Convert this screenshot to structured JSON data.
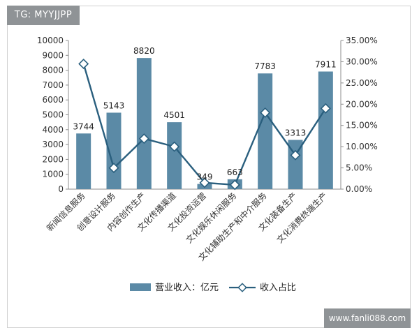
{
  "watermark_top_left": "TG: MYYJJPP",
  "watermark_bottom_right": "www.fanli088.com",
  "chart_data": {
    "type": "bar",
    "categories": [
      "新闻信息服务",
      "创意设计服务",
      "内容创作生产",
      "文化传播渠道",
      "文化投资运营",
      "文化娱乐休闲服务",
      "文化辅助生产和中介服务",
      "文化装备生产",
      "文化消费终端生产"
    ],
    "series": [
      {
        "name": "营业收入：亿元",
        "type": "bar",
        "axis": "left",
        "values": [
          3744,
          5143,
          8820,
          4501,
          349,
          663,
          7783,
          3313,
          7911
        ],
        "color": "#5b8aa6"
      },
      {
        "name": "收入占比",
        "type": "line",
        "axis": "right",
        "values": [
          29.5,
          5.0,
          11.9,
          10.0,
          1.5,
          1.0,
          18.0,
          8.0,
          19.0
        ],
        "color": "#2a5f7e"
      }
    ],
    "data_labels": [
      "3744",
      "5143",
      "8820",
      "4501",
      "349",
      "663",
      "7783",
      "3313",
      "7911"
    ],
    "y_left": {
      "min": 0,
      "max": 10000,
      "step": 1000,
      "ticks": [
        "0",
        "1000",
        "2000",
        "3000",
        "4000",
        "5000",
        "6000",
        "7000",
        "8000",
        "9000",
        "10000"
      ]
    },
    "y_right": {
      "min": 0,
      "max": 35,
      "step": 5,
      "ticks": [
        "0.00%",
        "5.00%",
        "10.00%",
        "15.00%",
        "20.00%",
        "25.00%",
        "30.00%",
        "35.00%"
      ]
    },
    "grid": false,
    "legend_position": "bottom"
  }
}
